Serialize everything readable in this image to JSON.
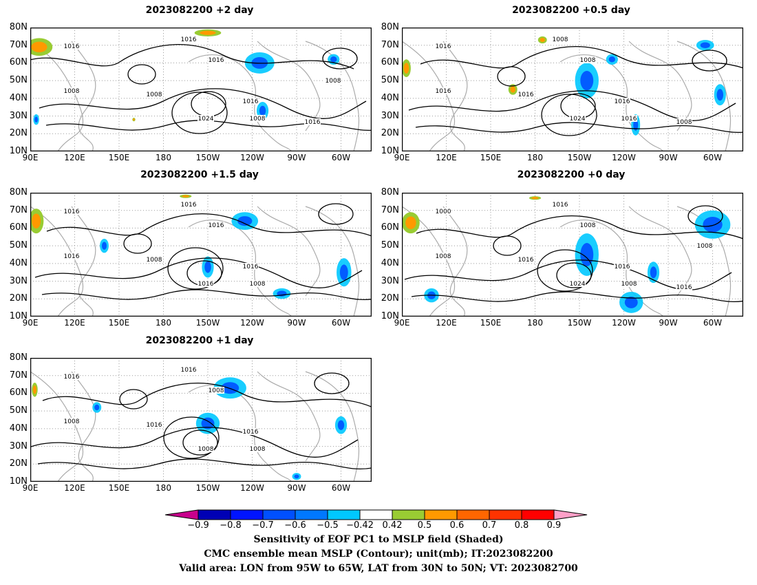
{
  "map": {
    "lat_labels": [
      "80N",
      "70N",
      "60N",
      "50N",
      "40N",
      "30N",
      "20N",
      "10N"
    ],
    "lon_labels": [
      "90E",
      "120E",
      "150E",
      "180",
      "150W",
      "120W",
      "90W",
      "60W"
    ],
    "panels": [
      {
        "title": "2023082200 +2 day",
        "contour_labels": [
          "1016",
          "1016",
          "1008",
          "1016",
          "1008",
          "1024",
          "1016",
          "1008",
          "1016",
          "1008"
        ],
        "blue_patches": [
          {
            "lon": -115,
            "lat": 60,
            "rx": 10,
            "ry": 6
          },
          {
            "lon": -113,
            "lat": 33,
            "rx": 4,
            "ry": 5
          },
          {
            "lon": -65,
            "lat": 62,
            "rx": 4,
            "ry": 3
          },
          {
            "lon": 94,
            "lat": 28,
            "rx": 2,
            "ry": 3
          }
        ],
        "warm_patches": [
          {
            "lon": 96,
            "lat": 69,
            "rx": 9,
            "ry": 5
          },
          {
            "lon": -150,
            "lat": 77,
            "rx": 9,
            "ry": 2
          },
          {
            "lon": 160,
            "lat": 28,
            "rx": 1,
            "ry": 1
          }
        ]
      },
      {
        "title": "2023082200 +0.5 day",
        "contour_labels": [
          "1016",
          "1008",
          "1016",
          "1008",
          "1016",
          "1024",
          "1016",
          "1016",
          "1008"
        ],
        "blue_patches": [
          {
            "lon": -145,
            "lat": 50,
            "rx": 8,
            "ry": 10
          },
          {
            "lon": -128,
            "lat": 62,
            "rx": 4,
            "ry": 3
          },
          {
            "lon": -65,
            "lat": 70,
            "rx": 6,
            "ry": 3
          },
          {
            "lon": -55,
            "lat": 42,
            "rx": 4,
            "ry": 6
          },
          {
            "lon": -112,
            "lat": 25,
            "rx": 3,
            "ry": 6
          }
        ],
        "warm_patches": [
          {
            "lon": 93,
            "lat": 57,
            "rx": 3,
            "ry": 5
          },
          {
            "lon": 165,
            "lat": 45,
            "rx": 3,
            "ry": 3
          },
          {
            "lon": -175,
            "lat": 73,
            "rx": 3,
            "ry": 2
          }
        ]
      },
      {
        "title": "2023082200 +1.5 day",
        "contour_labels": [
          "1016",
          "1016",
          "1016",
          "1016",
          "1008",
          "1016",
          "1016",
          "1008"
        ],
        "blue_patches": [
          {
            "lon": -125,
            "lat": 64,
            "rx": 9,
            "ry": 5
          },
          {
            "lon": -150,
            "lat": 38,
            "rx": 4,
            "ry": 6
          },
          {
            "lon": 140,
            "lat": 50,
            "rx": 3,
            "ry": 4
          },
          {
            "lon": -100,
            "lat": 23,
            "rx": 6,
            "ry": 3
          },
          {
            "lon": -58,
            "lat": 35,
            "rx": 5,
            "ry": 8
          }
        ],
        "warm_patches": [
          {
            "lon": 94,
            "lat": 64,
            "rx": 5,
            "ry": 7
          },
          {
            "lon": -165,
            "lat": 78,
            "rx": 4,
            "ry": 1
          }
        ]
      },
      {
        "title": "2023082200 +0 day",
        "contour_labels": [
          "1000",
          "1016",
          "1008",
          "1008",
          "1016",
          "1024",
          "1016",
          "1008",
          "1016",
          "1008"
        ],
        "blue_patches": [
          {
            "lon": -60,
            "lat": 62,
            "rx": 12,
            "ry": 8
          },
          {
            "lon": -145,
            "lat": 45,
            "rx": 8,
            "ry": 12
          },
          {
            "lon": -115,
            "lat": 18,
            "rx": 8,
            "ry": 6
          },
          {
            "lon": 110,
            "lat": 22,
            "rx": 5,
            "ry": 4
          },
          {
            "lon": -100,
            "lat": 35,
            "rx": 4,
            "ry": 6
          }
        ],
        "warm_patches": [
          {
            "lon": 96,
            "lat": 63,
            "rx": 6,
            "ry": 6
          },
          {
            "lon": 180,
            "lat": 77,
            "rx": 4,
            "ry": 1
          }
        ]
      },
      {
        "title": "2023082200 +1 day",
        "contour_labels": [
          "1016",
          "1016",
          "1008",
          "1008",
          "1016",
          "1008",
          "1016",
          "1008"
        ],
        "blue_patches": [
          {
            "lon": -135,
            "lat": 63,
            "rx": 11,
            "ry": 6
          },
          {
            "lon": -150,
            "lat": 43,
            "rx": 8,
            "ry": 6
          },
          {
            "lon": 135,
            "lat": 52,
            "rx": 3,
            "ry": 3
          },
          {
            "lon": -60,
            "lat": 42,
            "rx": 4,
            "ry": 5
          },
          {
            "lon": -90,
            "lat": 13,
            "rx": 3,
            "ry": 2
          }
        ],
        "warm_patches": [
          {
            "lon": 93,
            "lat": 62,
            "rx": 2,
            "ry": 4
          }
        ]
      }
    ]
  },
  "colorbar": {
    "tick_labels": [
      "−0.9",
      "−0.8",
      "−0.7",
      "−0.6",
      "−0.5",
      "−0.42",
      "0.42",
      "0.5",
      "0.6",
      "0.7",
      "0.8",
      "0.9"
    ],
    "colors": [
      "#0000b4",
      "#0014ff",
      "#0050ff",
      "#0078ff",
      "#00c8ff",
      "#ffffff",
      "#99cc33",
      "#ff9900",
      "#ff6600",
      "#ff3300",
      "#ff0000"
    ],
    "left_arrow_color": "#c8008c",
    "right_arrow_color": "#ffa0c8"
  },
  "caption": {
    "line1": "Sensitivity of EOF PC1 to MSLP field (Shaded)",
    "line2": "CMC ensemble mean MSLP (Contour); unit(mb); IT:2023082200",
    "line3": "Valid area: LON from 95W to 65W, LAT from 30N to 50N; VT: 2023082700"
  }
}
